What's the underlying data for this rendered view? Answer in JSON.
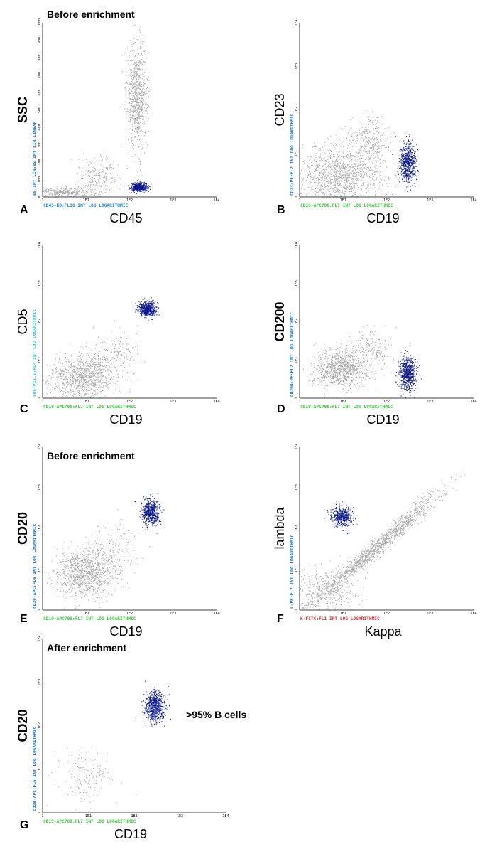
{
  "colors": {
    "background_events": "#a6a6a6",
    "gated_events": "#0a1a8c",
    "x_param_green": "#33cc33",
    "y_param_blue": "#1a73cc",
    "y_param_cyan": "#33cccc",
    "x_param_red": "#e6262c",
    "x_param_blue": "#1a88e0"
  },
  "chart_data": [
    {
      "type": "scatter",
      "panel": "A",
      "title": "Before enrichment",
      "xlabel": "CD45",
      "ylabel": "SSC",
      "x_param": "CD45-KO:FL10 INT LOG LOGARITHMIC",
      "y_param": "SS INT LIN:SS INT LIN LINEAR",
      "x_scale": "log",
      "xlim": [
        1,
        10000
      ],
      "x_ticks": [
        "1",
        "1E1",
        "1E2",
        "1E3",
        "1E4"
      ],
      "y_scale": "linear",
      "ylim": [
        0,
        1023
      ],
      "y_ticks": [
        "0",
        "100",
        "200",
        "300",
        "400",
        "500",
        "600",
        "700",
        "800",
        "900",
        "1000"
      ],
      "grid": false,
      "populations": [
        {
          "color": "grey",
          "center": [
            150,
            600
          ],
          "spread": [
            0.12,
            150
          ],
          "n": 900
        },
        {
          "color": "grey",
          "center": [
            3,
            30
          ],
          "spread": [
            0.35,
            15
          ],
          "n": 350
        },
        {
          "color": "grey",
          "center": [
            20,
            120
          ],
          "spread": [
            0.25,
            60
          ],
          "n": 250
        },
        {
          "color": "blue",
          "center": [
            160,
            60
          ],
          "spread": [
            0.09,
            12
          ],
          "n": 500
        }
      ]
    },
    {
      "type": "scatter",
      "panel": "B",
      "xlabel": "CD19",
      "ylabel": "CD23",
      "x_param": "CD19-APC700:FL7 INT LOG LOGARITHMIC",
      "y_param": "CD23-PE:FL2 INT LOG LOGARITHMIC",
      "x_scale": "log",
      "xlim": [
        1,
        10000
      ],
      "x_ticks": [
        "1",
        "1E1",
        "1E2",
        "1E3",
        "1E4"
      ],
      "y_scale": "log",
      "ylim": [
        1,
        10000
      ],
      "y_ticks": [
        "1",
        "1E1",
        "1E2",
        "1E3",
        "1E4"
      ],
      "grid": false,
      "populations": [
        {
          "color": "grey",
          "center": [
            8,
            3
          ],
          "spread": [
            0.45,
            0.35
          ],
          "n": 1300
        },
        {
          "color": "grey",
          "center": [
            40,
            20
          ],
          "spread": [
            0.25,
            0.3
          ],
          "n": 350
        },
        {
          "color": "blue",
          "center": [
            300,
            6
          ],
          "spread": [
            0.1,
            0.25
          ],
          "n": 650
        }
      ]
    },
    {
      "type": "scatter",
      "panel": "C",
      "xlabel": "CD19",
      "ylabel": "CD5",
      "x_param": "CD19-APC700:FL7 INT LOG LOGARITHMIC",
      "y_param": "CD5-PC5.5:FL4 INT LOG LOGARITHMIC",
      "x_scale": "log",
      "xlim": [
        1,
        10000
      ],
      "x_ticks": [
        "1",
        "1E1",
        "1E2",
        "1E3",
        "1E4"
      ],
      "y_scale": "log",
      "ylim": [
        1,
        10000
      ],
      "y_ticks": [
        "1",
        "1E1",
        "1E2",
        "1E3",
        "1E4"
      ],
      "grid": false,
      "populations": [
        {
          "color": "grey",
          "center": [
            8,
            3.5
          ],
          "spread": [
            0.38,
            0.3
          ],
          "n": 1100
        },
        {
          "color": "grey",
          "center": [
            50,
            15
          ],
          "spread": [
            0.3,
            0.3
          ],
          "n": 180
        },
        {
          "color": "blue",
          "center": [
            250,
            220
          ],
          "spread": [
            0.1,
            0.1
          ],
          "n": 550
        }
      ]
    },
    {
      "type": "scatter",
      "panel": "D",
      "xlabel": "CD19",
      "ylabel": "CD200",
      "x_param": "CD19-APC700:FL7 INT LOG LOGARITHMIC",
      "y_param": "CD200-PE:FL2 INT LOG LOGARITHMIC",
      "x_scale": "log",
      "xlim": [
        1,
        10000
      ],
      "x_ticks": [
        "1",
        "1E1",
        "1E2",
        "1E3",
        "1E4"
      ],
      "y_scale": "log",
      "ylim": [
        1,
        10000
      ],
      "y_ticks": [
        "1",
        "1E1",
        "1E2",
        "1E3",
        "1E4"
      ],
      "grid": false,
      "populations": [
        {
          "color": "grey",
          "center": [
            9,
            6
          ],
          "spread": [
            0.32,
            0.25
          ],
          "n": 1000
        },
        {
          "color": "grey",
          "center": [
            40,
            20
          ],
          "spread": [
            0.25,
            0.25
          ],
          "n": 200
        },
        {
          "color": "blue",
          "center": [
            300,
            4.5
          ],
          "spread": [
            0.1,
            0.22
          ],
          "n": 650
        }
      ]
    },
    {
      "type": "scatter",
      "panel": "E",
      "title": "Before enrichment",
      "xlabel": "CD19",
      "ylabel": "CD20",
      "x_param": "CD19-APC700:FL7 INT LOG LOGARITHMIC",
      "y_param": "CD20-APC:FL6 INT LOG LOGARITHMIC",
      "x_scale": "log",
      "xlim": [
        1,
        10000
      ],
      "x_ticks": [
        "1",
        "1E1",
        "1E2",
        "1E3",
        "1E4"
      ],
      "y_scale": "log",
      "ylim": [
        1,
        10000
      ],
      "y_ticks": [
        "1",
        "1E1",
        "1E2",
        "1E3",
        "1E4"
      ],
      "grid": false,
      "populations": [
        {
          "color": "grey",
          "center": [
            9,
            8
          ],
          "spread": [
            0.35,
            0.3
          ],
          "n": 1100
        },
        {
          "color": "grey",
          "center": [
            40,
            30
          ],
          "spread": [
            0.28,
            0.3
          ],
          "n": 200
        },
        {
          "color": "blue",
          "center": [
            300,
            250
          ],
          "spread": [
            0.1,
            0.16
          ],
          "n": 600
        }
      ]
    },
    {
      "type": "scatter",
      "panel": "F",
      "xlabel": "Kappa",
      "ylabel": "lambda",
      "x_param": "K-FITC:FL1 INT LOG LOGARITHMIC",
      "y_param": "L-PE:FL2 INT LOG LOGARITHMIC",
      "x_scale": "log",
      "xlim": [
        1,
        10000
      ],
      "x_ticks": [
        "1",
        "1E1",
        "1E2",
        "1E3",
        "1E4"
      ],
      "y_scale": "log",
      "ylim": [
        1,
        10000
      ],
      "y_ticks": [
        "1",
        "1E1",
        "1E2",
        "1E3",
        "1E4"
      ],
      "grid": false,
      "populations": [
        {
          "color": "grey",
          "center": [
            50,
            30
          ],
          "spread": [
            0.55,
            0.5
          ],
          "n": 1500,
          "correlated": true
        },
        {
          "color": "grey",
          "center": [
            4,
            3
          ],
          "spread": [
            0.35,
            0.3
          ],
          "n": 400
        },
        {
          "color": "blue",
          "center": [
            9,
            200
          ],
          "spread": [
            0.12,
            0.12
          ],
          "n": 450
        }
      ]
    },
    {
      "type": "scatter",
      "panel": "G",
      "title": "After enrichment",
      "annotation": ">95% B cells",
      "xlabel": "CD19",
      "ylabel": "CD20",
      "x_param": "CD19-APC700:FL7 INT LOG LOGARITHMIC",
      "y_param": "CD20-APC:FL6 INT LOG LOGARITHMIC",
      "x_scale": "log",
      "xlim": [
        1,
        10000
      ],
      "x_ticks": [
        "1",
        "1E1",
        "1E2",
        "1E3",
        "1E4"
      ],
      "y_scale": "log",
      "ylim": [
        1,
        10000
      ],
      "y_ticks": [
        "1",
        "1E1",
        "1E2",
        "1E3",
        "1E4"
      ],
      "grid": false,
      "populations": [
        {
          "color": "grey",
          "center": [
            8,
            7
          ],
          "spread": [
            0.3,
            0.3
          ],
          "n": 180
        },
        {
          "color": "blue",
          "center": [
            280,
            280
          ],
          "spread": [
            0.11,
            0.17
          ],
          "n": 700
        }
      ]
    }
  ]
}
